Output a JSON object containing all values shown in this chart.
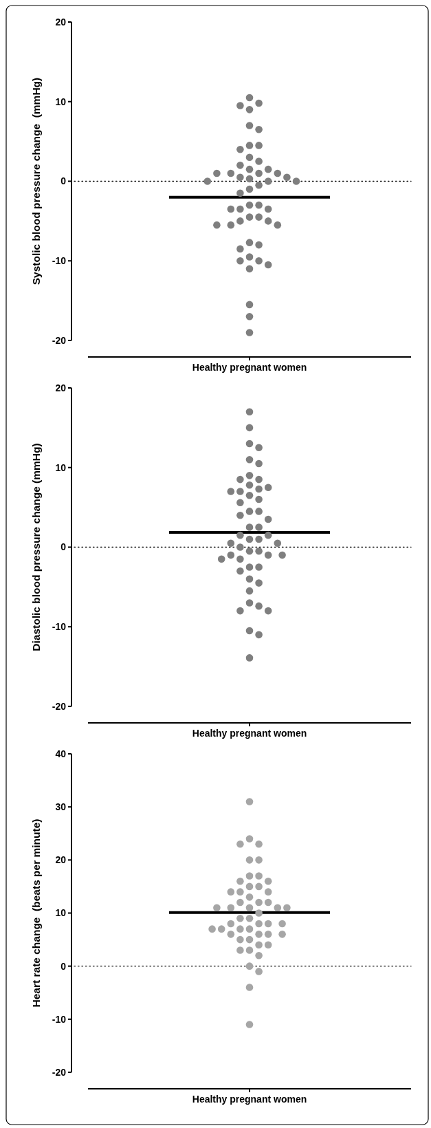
{
  "chart_data": [
    {
      "type": "scatter",
      "ylabel": "Systolic blood pressure change  (mmHg)",
      "categories": [
        "Healthy pregnant women"
      ],
      "ylim": [
        -20,
        20
      ],
      "yticks": [
        -20,
        -10,
        0,
        10,
        20
      ],
      "marker": "circle",
      "series": [
        {
          "color": "#7f7f7f",
          "x": [
            "Healthy pregnant women",
            "Healthy pregnant women",
            "Healthy pregnant women",
            "Healthy pregnant women",
            "Healthy pregnant women",
            "Healthy pregnant women",
            "Healthy pregnant women",
            "Healthy pregnant women",
            "Healthy pregnant women",
            "Healthy pregnant women",
            "Healthy pregnant women",
            "Healthy pregnant women",
            "Healthy pregnant women",
            "Healthy pregnant women",
            "Healthy pregnant women",
            "Healthy pregnant women",
            "Healthy pregnant women",
            "Healthy pregnant women",
            "Healthy pregnant women",
            "Healthy pregnant women",
            "Healthy pregnant women",
            "Healthy pregnant women",
            "Healthy pregnant women",
            "Healthy pregnant women",
            "Healthy pregnant women",
            "Healthy pregnant women",
            "Healthy pregnant women",
            "Healthy pregnant women",
            "Healthy pregnant women",
            "Healthy pregnant women",
            "Healthy pregnant women",
            "Healthy pregnant women",
            "Healthy pregnant women",
            "Healthy pregnant women",
            "Healthy pregnant women",
            "Healthy pregnant women",
            "Healthy pregnant women",
            "Healthy pregnant women",
            "Healthy pregnant women",
            "Healthy pregnant women",
            "Healthy pregnant women",
            "Healthy pregnant women",
            "Healthy pregnant women",
            "Healthy pregnant women",
            "Healthy pregnant women",
            "Healthy pregnant women",
            "Healthy pregnant women",
            "Healthy pregnant women",
            "Healthy pregnant women",
            "Healthy pregnant women"
          ],
          "values": [
            10.5,
            9.8,
            9.5,
            9,
            7,
            6.5,
            4.5,
            4.5,
            4,
            3,
            2.5,
            2,
            1.5,
            1.5,
            1,
            1,
            1,
            1,
            0.5,
            0.5,
            0.3,
            0,
            0,
            0,
            -0.5,
            -1,
            -1.5,
            -3,
            -3,
            -3.5,
            -3.5,
            -3.5,
            -4.5,
            -4.5,
            -5,
            -5,
            -5.5,
            -5.5,
            -5.5,
            -7.7,
            -8,
            -8.5,
            -9.5,
            -10,
            -10,
            -10.5,
            -11,
            -15.5,
            -17,
            -19
          ]
        }
      ],
      "ref_lines": [
        {
          "axis": "y",
          "value": 0,
          "line_style": "dotted",
          "color": "#000000"
        },
        {
          "axis": "y",
          "value": -2,
          "line_style": "solid",
          "color": "#000000"
        }
      ]
    },
    {
      "type": "scatter",
      "ylabel": "Diastolic blood pressure change (mmHg)",
      "categories": [
        "Healthy pregnant women"
      ],
      "ylim": [
        -20,
        20
      ],
      "yticks": [
        -20,
        -10,
        0,
        10,
        20
      ],
      "marker": "circle",
      "series": [
        {
          "color": "#7f7f7f",
          "x": [
            "Healthy pregnant women",
            "Healthy pregnant women",
            "Healthy pregnant women",
            "Healthy pregnant women",
            "Healthy pregnant women",
            "Healthy pregnant women",
            "Healthy pregnant women",
            "Healthy pregnant women",
            "Healthy pregnant women",
            "Healthy pregnant women",
            "Healthy pregnant women",
            "Healthy pregnant women",
            "Healthy pregnant women",
            "Healthy pregnant women",
            "Healthy pregnant women",
            "Healthy pregnant women",
            "Healthy pregnant women",
            "Healthy pregnant women",
            "Healthy pregnant women",
            "Healthy pregnant women",
            "Healthy pregnant women",
            "Healthy pregnant women",
            "Healthy pregnant women",
            "Healthy pregnant women",
            "Healthy pregnant women",
            "Healthy pregnant women",
            "Healthy pregnant women",
            "Healthy pregnant women",
            "Healthy pregnant women",
            "Healthy pregnant women",
            "Healthy pregnant women",
            "Healthy pregnant women",
            "Healthy pregnant women",
            "Healthy pregnant women",
            "Healthy pregnant women",
            "Healthy pregnant women",
            "Healthy pregnant women",
            "Healthy pregnant women",
            "Healthy pregnant women",
            "Healthy pregnant women",
            "Healthy pregnant women",
            "Healthy pregnant women",
            "Healthy pregnant women",
            "Healthy pregnant women",
            "Healthy pregnant women",
            "Healthy pregnant women",
            "Healthy pregnant women",
            "Healthy pregnant women",
            "Healthy pregnant women",
            "Healthy pregnant women"
          ],
          "values": [
            17,
            15,
            13,
            12.5,
            11,
            10.5,
            9,
            8.5,
            8.5,
            7.8,
            7.5,
            7.3,
            7,
            7,
            6.5,
            6,
            5.6,
            4.5,
            4.5,
            4,
            3.5,
            2.5,
            2.5,
            1.5,
            1.5,
            1,
            1,
            0.5,
            0.5,
            0,
            -0.5,
            -0.5,
            -1,
            -1,
            -1,
            -1.5,
            -1.5,
            -2.5,
            -2.5,
            -3,
            -4,
            -4.5,
            -5.5,
            -7,
            -7.4,
            -8,
            -8,
            -10.5,
            -11,
            -13.9
          ]
        }
      ],
      "ref_lines": [
        {
          "axis": "y",
          "value": 0,
          "line_style": "dotted",
          "color": "#000000"
        },
        {
          "axis": "y",
          "value": 1.85,
          "line_style": "solid",
          "color": "#000000"
        }
      ]
    },
    {
      "type": "scatter",
      "ylabel": "Heart rate change  (beats per minute)",
      "categories": [
        "Healthy pregnant women"
      ],
      "ylim": [
        -20,
        40
      ],
      "yticks": [
        -20,
        -10,
        0,
        10,
        20,
        30,
        40
      ],
      "marker": "circle",
      "series": [
        {
          "color": "#a6a6a6",
          "x": [
            "Healthy pregnant women",
            "Healthy pregnant women",
            "Healthy pregnant women",
            "Healthy pregnant women",
            "Healthy pregnant women",
            "Healthy pregnant women",
            "Healthy pregnant women",
            "Healthy pregnant women",
            "Healthy pregnant women",
            "Healthy pregnant women",
            "Healthy pregnant women",
            "Healthy pregnant women",
            "Healthy pregnant women",
            "Healthy pregnant women",
            "Healthy pregnant women",
            "Healthy pregnant women",
            "Healthy pregnant women",
            "Healthy pregnant women",
            "Healthy pregnant women",
            "Healthy pregnant women",
            "Healthy pregnant women",
            "Healthy pregnant women",
            "Healthy pregnant women",
            "Healthy pregnant women",
            "Healthy pregnant women",
            "Healthy pregnant women",
            "Healthy pregnant women",
            "Healthy pregnant women",
            "Healthy pregnant women",
            "Healthy pregnant women",
            "Healthy pregnant women",
            "Healthy pregnant women",
            "Healthy pregnant women",
            "Healthy pregnant women",
            "Healthy pregnant women",
            "Healthy pregnant women",
            "Healthy pregnant women",
            "Healthy pregnant women",
            "Healthy pregnant women",
            "Healthy pregnant women",
            "Healthy pregnant women",
            "Healthy pregnant women",
            "Healthy pregnant women",
            "Healthy pregnant women",
            "Healthy pregnant women",
            "Healthy pregnant women",
            "Healthy pregnant women",
            "Healthy pregnant women",
            "Healthy pregnant women",
            "Healthy pregnant women"
          ],
          "values": [
            31,
            24,
            23,
            23,
            20,
            20,
            17,
            17,
            16,
            16,
            15,
            15,
            14,
            14,
            14,
            13,
            12,
            12,
            12,
            11,
            11,
            11,
            11,
            11,
            10,
            9,
            9,
            8,
            8,
            8,
            8,
            7,
            7,
            7,
            7,
            6,
            6,
            6,
            6,
            5,
            5,
            4,
            4,
            3,
            3,
            2,
            0,
            -1,
            -4,
            -11
          ]
        }
      ],
      "ref_lines": [
        {
          "axis": "y",
          "value": 0,
          "line_style": "dotted",
          "color": "#000000"
        },
        {
          "axis": "y",
          "value": 10.1,
          "line_style": "solid",
          "color": "#000000"
        }
      ]
    }
  ]
}
